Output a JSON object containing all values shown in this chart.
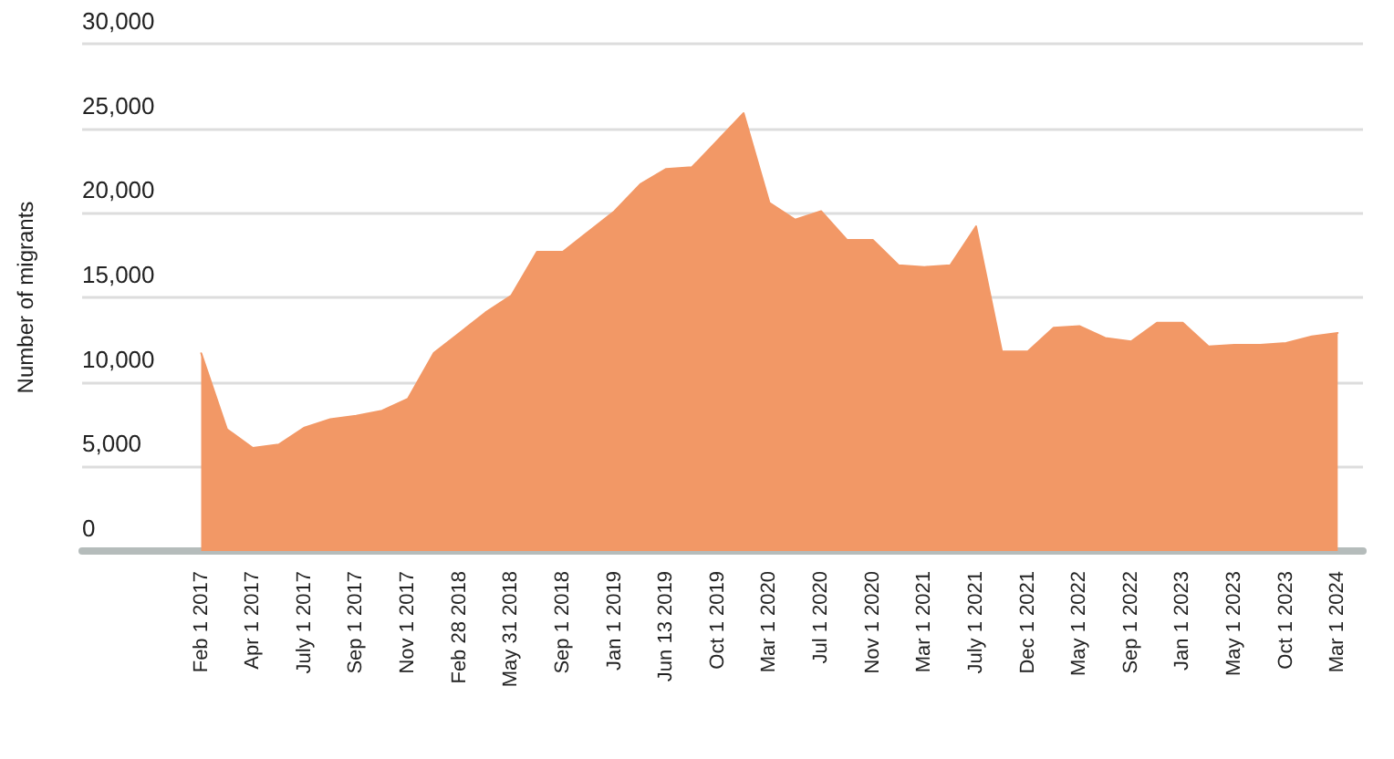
{
  "chart_data": {
    "type": "area",
    "ylabel": "Number of migrants",
    "categories": [
      "Feb 1 2017",
      null,
      "Apr 1 2017",
      null,
      "July 1 2017",
      null,
      "Sep 1 2017",
      null,
      "Nov 1 2017",
      null,
      "Feb 28 2018",
      null,
      "May 31 2018",
      null,
      "Sep 1 2018",
      null,
      "Jan 1 2019",
      null,
      "Jun 13 2019",
      null,
      "Oct 1 2019",
      null,
      "Mar 1 2020",
      null,
      "Jul 1 2020",
      null,
      "Nov 1 2020",
      null,
      "Mar 1 2021",
      null,
      "July 1 2021",
      null,
      "Dec 1 2021",
      null,
      "May 1 2022",
      null,
      "Sep 1 2022",
      null,
      "Jan 1 2023",
      null,
      "May 1 2023",
      null,
      "Oct 1 2023",
      null,
      "Mar 1 2024"
    ],
    "values": [
      11700,
      7200,
      6100,
      6300,
      7300,
      7800,
      8000,
      8300,
      9000,
      11700,
      12900,
      14100,
      15100,
      17700,
      17700,
      18900,
      20100,
      21700,
      22600,
      22700,
      24300,
      25900,
      20600,
      19600,
      20100,
      18400,
      18400,
      16900,
      16800,
      16900,
      19200,
      11800,
      11800,
      13200,
      13300,
      12600,
      12400,
      13500,
      13500,
      12100,
      12200,
      12200,
      12300,
      12700,
      12900
    ],
    "color": "#f29866",
    "ylim": [
      0,
      30000
    ],
    "yticks": [
      0,
      {
        "value": 5000,
        "label": "5,000"
      },
      {
        "value": 10000,
        "label": "10,000"
      },
      {
        "value": 15000,
        "label": "15,000"
      },
      {
        "value": 20000,
        "label": "20,000"
      },
      {
        "value": 25000,
        "label": "25,000"
      },
      {
        "value": 30000,
        "label": "30,000"
      }
    ],
    "grid": "y"
  }
}
